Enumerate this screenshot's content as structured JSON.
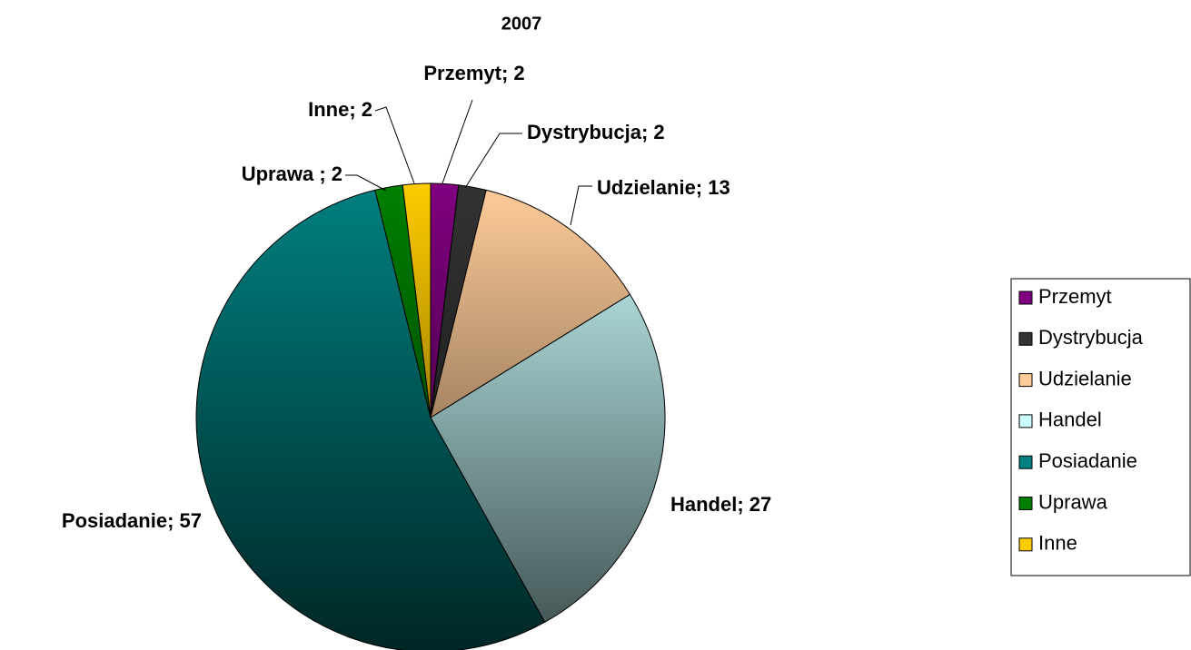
{
  "chart_data": {
    "type": "pie",
    "title": "2007",
    "categories": [
      "Przemyt",
      "Dystrybucja",
      "Udzielanie",
      "Handel",
      "Posiadanie",
      "Uprawa",
      "Inne"
    ],
    "values": [
      2,
      2,
      13,
      27,
      57,
      2,
      2
    ],
    "value_labels": [
      "Przemyt; 2",
      "Dystrybucja; 2",
      "Udzielanie; 13",
      "Handel; 27",
      "Posiadanie; 57",
      "Uprawa ; 2",
      "Inne; 2"
    ],
    "colors": [
      "#800080",
      "#333333",
      "#ffcc99",
      "#ccffff",
      "#008080",
      "#008000",
      "#ffcc00"
    ],
    "legend": "right"
  }
}
